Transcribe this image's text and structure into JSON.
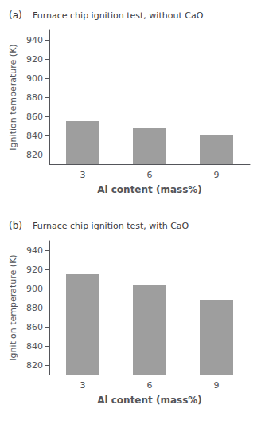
{
  "chart_data": [
    {
      "type": "bar",
      "label": "(a)",
      "title": "Furnace chip ignition test, without CaO",
      "categories": [
        "3",
        "6",
        "9"
      ],
      "values": [
        855,
        848,
        840
      ],
      "color": "#9E9E9E",
      "ylim": [
        810,
        950
      ],
      "yticks": [
        820,
        840,
        860,
        880,
        900,
        920,
        940
      ],
      "xlabel": "Al content (mass%)",
      "ylabel": "Ignition temperature (K)",
      "grid": false
    },
    {
      "type": "bar",
      "label": "(b)",
      "title": "Furnace chip ignition test, with CaO",
      "categories": [
        "3",
        "6",
        "9"
      ],
      "values": [
        915,
        904,
        888
      ],
      "color": "#9E9E9E",
      "ylim": [
        810,
        950
      ],
      "yticks": [
        820,
        840,
        860,
        880,
        900,
        920,
        940
      ],
      "xlabel": "Al content (mass%)",
      "ylabel": "Ignition temperature (K)",
      "grid": false
    }
  ]
}
